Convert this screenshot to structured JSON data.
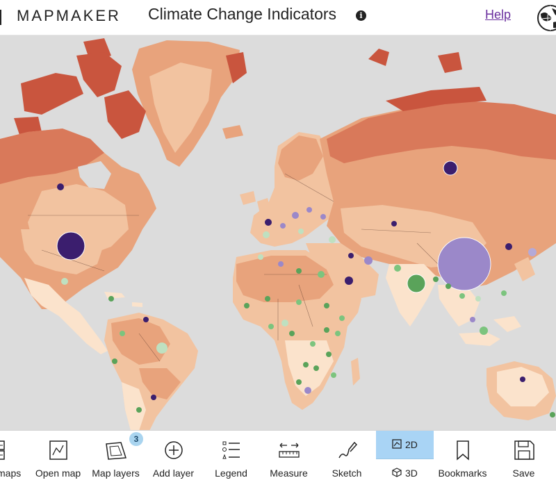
{
  "header": {
    "brand": "MAPMAKER",
    "title": "Climate Change Indicators",
    "info_icon": "info-icon",
    "help_label": "Help",
    "globe_icon": "globe-icon"
  },
  "colors": {
    "ocean": "#dcdcdc",
    "land_pale": "#fbe3cc",
    "land_light": "#f2c3a0",
    "land_mid": "#e8a37c",
    "land_dark": "#d9795a",
    "land_darkest": "#c9553e",
    "bubble_dark": "#3b1e6e",
    "bubble_lavender": "#9b88c9",
    "bubble_green": "#5aa35a",
    "bubble_lightgreen": "#bfe0c0",
    "accent_selected": "#a9d4f5"
  },
  "toolbar": {
    "items": [
      {
        "id": "maps",
        "label": "maps",
        "icon": "maps-icon"
      },
      {
        "id": "open-map",
        "label": "Open map",
        "icon": "open-map-icon"
      },
      {
        "id": "map-layers",
        "label": "Map layers",
        "icon": "map-layers-icon",
        "badge": "3"
      },
      {
        "id": "add-layer",
        "label": "Add layer",
        "icon": "add-layer-icon"
      },
      {
        "id": "legend",
        "label": "Legend",
        "icon": "legend-icon"
      },
      {
        "id": "measure",
        "label": "Measure",
        "icon": "measure-icon"
      },
      {
        "id": "sketch",
        "label": "Sketch",
        "icon": "sketch-icon"
      },
      {
        "id": "bookmarks",
        "label": "Bookmarks",
        "icon": "bookmarks-icon"
      },
      {
        "id": "save",
        "label": "Save",
        "icon": "save-icon"
      }
    ],
    "view_toggle": {
      "option_2d": "2D",
      "option_3d": "3D",
      "selected": "2D"
    }
  }
}
